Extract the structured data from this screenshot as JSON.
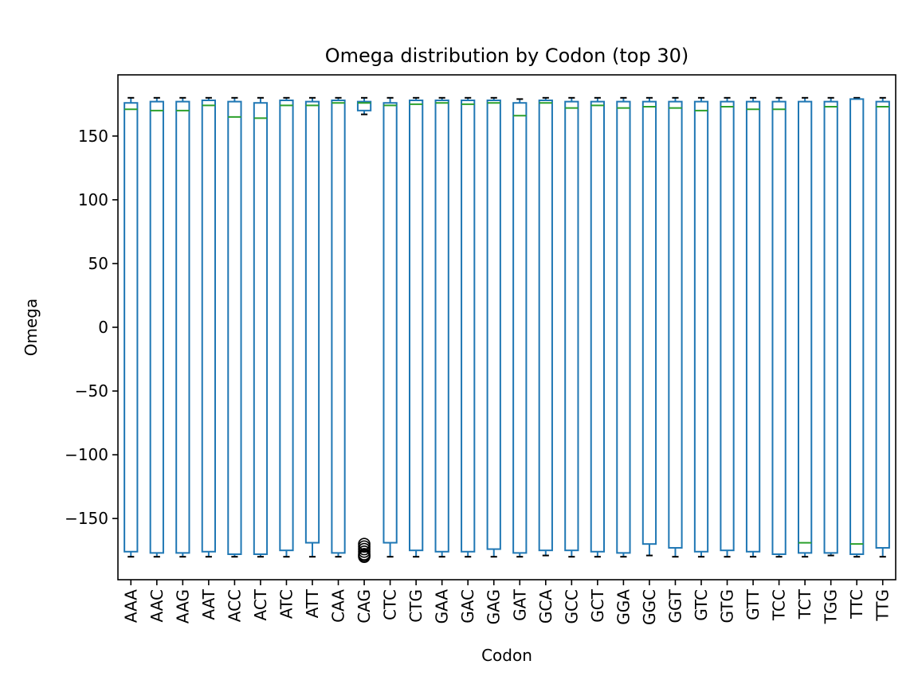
{
  "chart_data": {
    "type": "box",
    "title": "Omega distribution by Codon (top 30)",
    "xlabel": "Codon",
    "ylabel": "Omega",
    "ylim": [
      -198,
      198
    ],
    "yticks": [
      150,
      100,
      50,
      0,
      -50,
      -100,
      -150
    ],
    "ytick_labels": [
      "150",
      "100",
      "50",
      "0",
      "−50",
      "−100",
      "−150"
    ],
    "grid": false,
    "colors": {
      "box": "#1f77b4",
      "median": "#2ca02c",
      "whisker_cap": "#000000",
      "flier": "#000000"
    },
    "categories": [
      "AAA",
      "AAC",
      "AAG",
      "AAT",
      "ACC",
      "ACT",
      "ATC",
      "ATT",
      "CAA",
      "CAG",
      "CTC",
      "CTG",
      "GAA",
      "GAC",
      "GAG",
      "GAT",
      "GCA",
      "GCC",
      "GCT",
      "GGA",
      "GGC",
      "GGT",
      "GTC",
      "GTG",
      "GTT",
      "TCC",
      "TCT",
      "TGG",
      "TTC",
      "TTG"
    ],
    "boxes": [
      {
        "q1": -176,
        "median": 171,
        "q3": 176,
        "whislo": -180,
        "whishi": 180
      },
      {
        "q1": -177,
        "median": 170,
        "q3": 177,
        "whislo": -180,
        "whishi": 180
      },
      {
        "q1": -177,
        "median": 170,
        "q3": 177,
        "whislo": -180,
        "whishi": 180
      },
      {
        "q1": -176,
        "median": 174,
        "q3": 178,
        "whislo": -180,
        "whishi": 180
      },
      {
        "q1": -178,
        "median": 165,
        "q3": 177,
        "whislo": -180,
        "whishi": 180
      },
      {
        "q1": -178,
        "median": 164,
        "q3": 176,
        "whislo": -180,
        "whishi": 180
      },
      {
        "q1": -175,
        "median": 174,
        "q3": 178,
        "whislo": -180,
        "whishi": 180
      },
      {
        "q1": -169,
        "median": 174,
        "q3": 177,
        "whislo": -180,
        "whishi": 180
      },
      {
        "q1": -177,
        "median": 176,
        "q3": 178,
        "whislo": -180,
        "whishi": 180
      },
      {
        "q1": 170,
        "median": 176,
        "q3": 177,
        "whislo": 167,
        "whishi": 180,
        "fliers": [
          -170,
          -172,
          -174,
          -176,
          -178,
          -179,
          -180
        ]
      },
      {
        "q1": -169,
        "median": 174,
        "q3": 176,
        "whislo": -180,
        "whishi": 180
      },
      {
        "q1": -175,
        "median": 175,
        "q3": 178,
        "whislo": -180,
        "whishi": 180
      },
      {
        "q1": -176,
        "median": 176,
        "q3": 178,
        "whislo": -180,
        "whishi": 180
      },
      {
        "q1": -176,
        "median": 175,
        "q3": 178,
        "whislo": -180,
        "whishi": 180
      },
      {
        "q1": -174,
        "median": 176,
        "q3": 178,
        "whislo": -180,
        "whishi": 180
      },
      {
        "q1": -177,
        "median": 166,
        "q3": 176,
        "whislo": -180,
        "whishi": 179
      },
      {
        "q1": -175,
        "median": 176,
        "q3": 178,
        "whislo": -179,
        "whishi": 180
      },
      {
        "q1": -175,
        "median": 172,
        "q3": 177,
        "whislo": -180,
        "whishi": 180
      },
      {
        "q1": -176,
        "median": 174,
        "q3": 177,
        "whislo": -180,
        "whishi": 180
      },
      {
        "q1": -177,
        "median": 172,
        "q3": 177,
        "whislo": -180,
        "whishi": 180
      },
      {
        "q1": -170,
        "median": 173,
        "q3": 177,
        "whislo": -179,
        "whishi": 180
      },
      {
        "q1": -173,
        "median": 172,
        "q3": 177,
        "whislo": -180,
        "whishi": 180
      },
      {
        "q1": -176,
        "median": 170,
        "q3": 177,
        "whislo": -180,
        "whishi": 180
      },
      {
        "q1": -175,
        "median": 173,
        "q3": 177,
        "whislo": -180,
        "whishi": 180
      },
      {
        "q1": -176,
        "median": 171,
        "q3": 177,
        "whislo": -180,
        "whishi": 180
      },
      {
        "q1": -178,
        "median": 171,
        "q3": 177,
        "whislo": -180,
        "whishi": 180
      },
      {
        "q1": -177,
        "median": -169,
        "q3": 177,
        "whislo": -180,
        "whishi": 180
      },
      {
        "q1": -177,
        "median": 173,
        "q3": 177,
        "whislo": -179,
        "whishi": 180
      },
      {
        "q1": -178,
        "median": -170,
        "q3": 179,
        "whislo": -180,
        "whishi": 180
      },
      {
        "q1": -173,
        "median": 173,
        "q3": 177,
        "whislo": -180,
        "whishi": 180
      }
    ]
  }
}
